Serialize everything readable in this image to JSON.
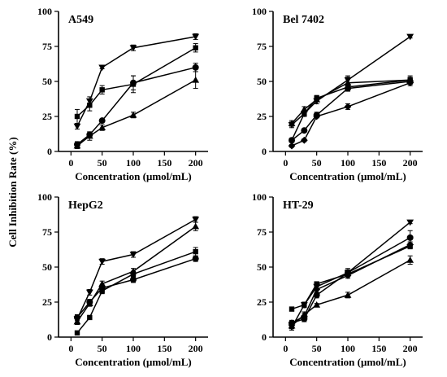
{
  "figure": {
    "ylabel": "Cell Inhibition Rate (%)"
  },
  "chart_data": [
    {
      "type": "line",
      "title": "A549",
      "xlabel": "Concentration (μmol/mL)",
      "ylabel": "",
      "xlim": [
        -20,
        220
      ],
      "ylim": [
        0,
        100
      ],
      "xticks": [
        0,
        50,
        100,
        150,
        200
      ],
      "yticks": [
        0,
        25,
        50,
        75,
        100
      ],
      "x": [
        10,
        30,
        50,
        100,
        200
      ],
      "series": [
        {
          "marker": "square",
          "values": [
            25,
            33,
            44,
            48,
            74
          ],
          "errors": [
            5,
            4,
            3,
            6,
            3
          ]
        },
        {
          "marker": "circle",
          "values": [
            5,
            12,
            22,
            49,
            60
          ],
          "errors": [
            2,
            2,
            1,
            5,
            3
          ]
        },
        {
          "marker": "triangle",
          "values": [
            4,
            11,
            17,
            26,
            51
          ],
          "errors": [
            2,
            3,
            2,
            2,
            6
          ]
        },
        {
          "marker": "inverted-triangle",
          "values": [
            18,
            36,
            60,
            74,
            82
          ],
          "errors": [
            2,
            3,
            1,
            2,
            2
          ]
        }
      ]
    },
    {
      "type": "line",
      "title": "Bel 7402",
      "xlabel": "Concentration (μmol/mL)",
      "ylabel": "",
      "xlim": [
        -20,
        220
      ],
      "ylim": [
        0,
        100
      ],
      "xticks": [
        0,
        50,
        100,
        150,
        200
      ],
      "yticks": [
        0,
        25,
        50,
        75,
        100
      ],
      "x": [
        10,
        30,
        50,
        100,
        200
      ],
      "series": [
        {
          "marker": "square",
          "values": [
            8,
            27,
            38,
            46,
            51
          ],
          "errors": [
            1,
            2,
            2,
            2,
            2
          ]
        },
        {
          "marker": "circle",
          "values": [
            8,
            15,
            26,
            45,
            50
          ],
          "errors": [
            1,
            1,
            2,
            2,
            2
          ]
        },
        {
          "marker": "triangle",
          "values": [
            20,
            30,
            37,
            49,
            51
          ],
          "errors": [
            2,
            2,
            1,
            4,
            3
          ]
        },
        {
          "marker": "inverted-triangle",
          "values": [
            19,
            27,
            36,
            51,
            82
          ],
          "errors": [
            2,
            2,
            2,
            3,
            1
          ]
        },
        {
          "marker": "diamond",
          "values": [
            4,
            8,
            25,
            32,
            49
          ],
          "errors": [
            1,
            1,
            1,
            2,
            2
          ]
        }
      ]
    },
    {
      "type": "line",
      "title": "HepG2",
      "xlabel": "Concentration (μmol/mL)",
      "ylabel": "",
      "xlim": [
        -20,
        220
      ],
      "ylim": [
        0,
        100
      ],
      "xticks": [
        0,
        50,
        100,
        150,
        200
      ],
      "yticks": [
        0,
        25,
        50,
        75,
        100
      ],
      "x": [
        10,
        30,
        50,
        100,
        200
      ],
      "series": [
        {
          "marker": "square",
          "values": [
            3,
            14,
            33,
            45,
            61
          ],
          "errors": [
            1,
            1,
            2,
            2,
            3
          ]
        },
        {
          "marker": "circle",
          "values": [
            14,
            25,
            35,
            41,
            56
          ],
          "errors": [
            2,
            2,
            2,
            2,
            2
          ]
        },
        {
          "marker": "triangle",
          "values": [
            11,
            24,
            38,
            47,
            79
          ],
          "errors": [
            2,
            2,
            2,
            2,
            3
          ]
        },
        {
          "marker": "inverted-triangle",
          "values": [
            13,
            32,
            54,
            59,
            84
          ],
          "errors": [
            2,
            2,
            2,
            2,
            2
          ]
        }
      ]
    },
    {
      "type": "line",
      "title": "HT-29",
      "xlabel": "Concentration (μmol/mL)",
      "ylabel": "",
      "xlim": [
        -20,
        220
      ],
      "ylim": [
        0,
        100
      ],
      "xticks": [
        0,
        50,
        100,
        150,
        200
      ],
      "yticks": [
        0,
        25,
        50,
        75,
        100
      ],
      "x": [
        10,
        30,
        50,
        100,
        200
      ],
      "series": [
        {
          "marker": "square",
          "values": [
            20,
            23,
            38,
            45,
            65
          ],
          "errors": [
            1,
            1,
            1,
            2,
            2
          ]
        },
        {
          "marker": "circle",
          "values": [
            10,
            13,
            30,
            46,
            71
          ],
          "errors": [
            2,
            2,
            2,
            3,
            5
          ]
        },
        {
          "marker": "triangle",
          "values": [
            8,
            16,
            23,
            30,
            55
          ],
          "errors": [
            2,
            2,
            1,
            2,
            3
          ]
        },
        {
          "marker": "inverted-triangle",
          "values": [
            7,
            23,
            36,
            46,
            82
          ],
          "errors": [
            2,
            2,
            2,
            2,
            1
          ]
        },
        {
          "marker": "diamond",
          "values": [
            10,
            15,
            34,
            44,
            66
          ],
          "errors": [
            1,
            2,
            2,
            2,
            2
          ]
        }
      ]
    }
  ]
}
